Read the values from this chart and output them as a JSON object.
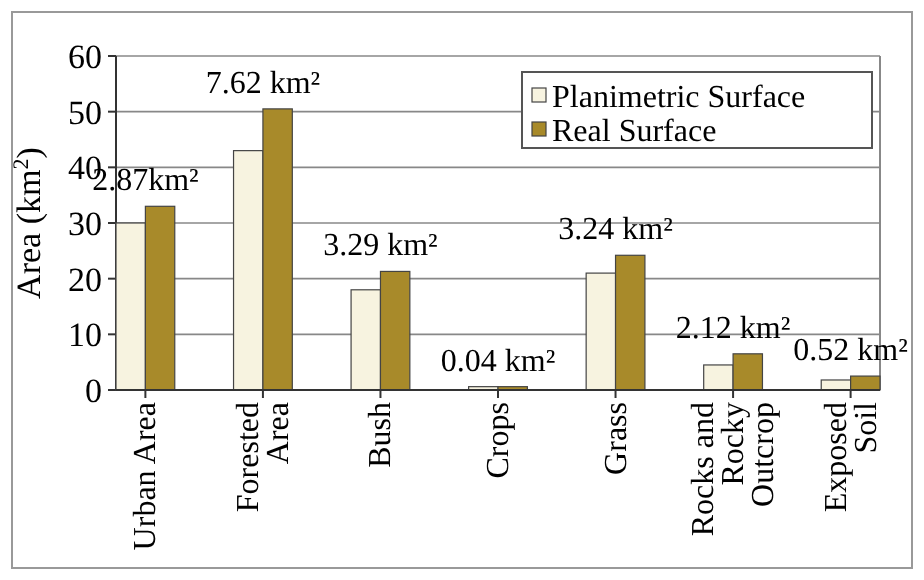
{
  "chart_data": {
    "type": "bar",
    "ylabel": "Area (km$^{2}$)",
    "categories": [
      "Urban Area",
      "Forested Area",
      "Bush",
      "Crops",
      "Grass",
      "Rocks and Rocky Outcrop",
      "Exposed Soil"
    ],
    "series": [
      {
        "name": "Planimetric Surface",
        "color": "#f7f3e0",
        "values": [
          30,
          43,
          18,
          0.6,
          21,
          4.5,
          1.8
        ]
      },
      {
        "name": "Real Surface",
        "color": "#a88a2a",
        "values": [
          33,
          50.5,
          21.3,
          0.6,
          24.2,
          6.5,
          2.5
        ]
      }
    ],
    "ylim": [
      0,
      60
    ],
    "yticks": [
      0,
      10,
      20,
      30,
      40,
      50,
      60
    ],
    "grid": "y",
    "legend": "top right",
    "annotations": [
      {
        "text": "2.87km²",
        "x": "Urban Area",
        "y": 33
      },
      {
        "text": "7.62 km²",
        "x": "Forested Area",
        "y": 50.5
      },
      {
        "text": "3.29 km²",
        "x": "Bush",
        "y": 21.3
      },
      {
        "text": "0.04 km²",
        "x": "Crops",
        "y": 0.6
      },
      {
        "text": "3.24 km²",
        "x": "Grass",
        "y": 24.2
      },
      {
        "text": "2.12 km²",
        "x": "Rocks and Rocky Outcrop",
        "y": 6.5
      },
      {
        "text": "0.52 km²",
        "x": "Exposed Soil",
        "y": 2.5
      }
    ]
  }
}
